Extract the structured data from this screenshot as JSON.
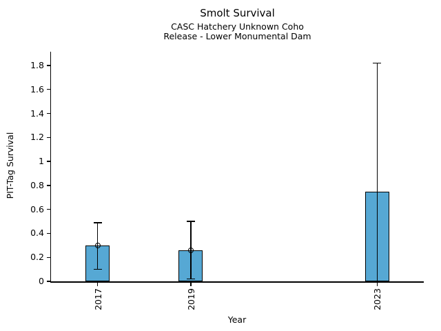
{
  "chart_data": {
    "type": "bar",
    "title": "Smolt Survival",
    "subtitle_line1": "CASC Hatchery Unknown Coho",
    "subtitle_line2": "Release - Lower Monumental Dam",
    "xlabel": "Year",
    "ylabel": "PIT-Tag Survival",
    "categories": [
      2017,
      2019,
      2023
    ],
    "xtick_labels": [
      "2017",
      "2019",
      "2023"
    ],
    "values": [
      0.3,
      0.26,
      0.75
    ],
    "error_low": [
      0.1,
      0.02,
      0.0
    ],
    "error_high": [
      0.49,
      0.5,
      1.82
    ],
    "point_markers": [
      true,
      true,
      false
    ],
    "xlim": [
      2016,
      2024
    ],
    "ylim": [
      0,
      1.915
    ],
    "yticks": [
      0,
      0.2,
      0.4,
      0.6,
      0.8,
      1.0,
      1.2,
      1.4,
      1.6,
      1.8
    ],
    "ytick_labels": [
      "0",
      "0.2",
      "0.4",
      "0.6",
      "0.8",
      "1",
      "1.2",
      "1.4",
      "1.6",
      "1.8"
    ],
    "bar_width_years": 0.52,
    "bar_color": "#56a8d4",
    "edge_color": "#000000",
    "background_color": "#ffffff",
    "grid": false,
    "legend": null
  }
}
